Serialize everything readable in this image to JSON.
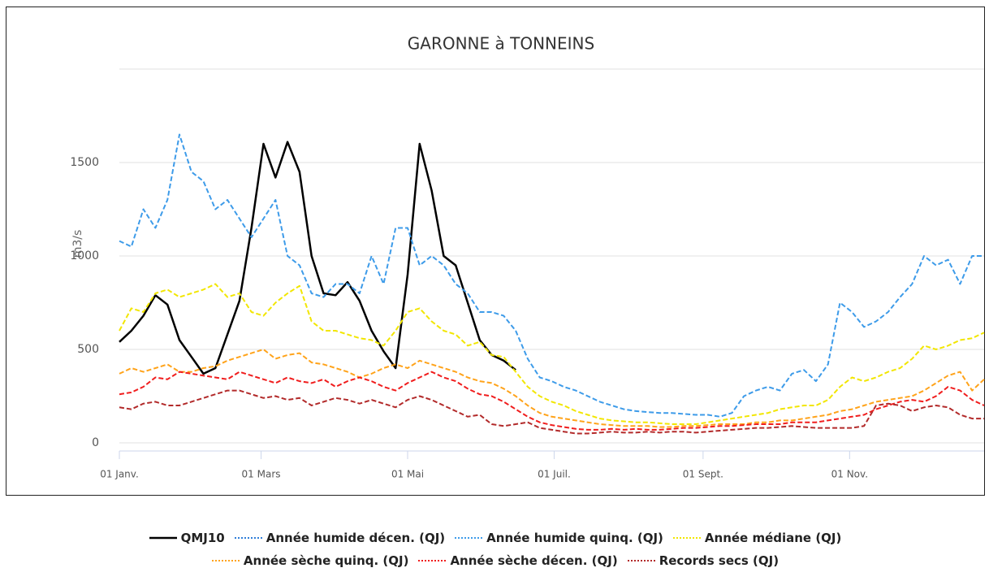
{
  "chart_data": {
    "type": "line",
    "title": "GARONNE à TONNEINS",
    "y_label": "m3/s",
    "x": [
      0,
      5,
      10,
      15,
      20,
      25,
      30,
      35,
      40,
      45,
      50,
      55,
      60,
      65,
      70,
      75,
      80,
      85,
      90,
      95,
      100,
      105,
      110,
      115,
      120,
      125,
      130,
      135,
      140,
      145,
      150,
      155,
      160,
      165,
      170,
      175,
      180,
      185,
      190,
      195,
      200,
      205,
      210,
      215,
      220,
      225,
      230,
      235,
      240,
      245,
      250,
      255,
      260,
      265,
      270,
      275,
      280,
      285,
      290,
      295,
      300,
      305,
      310,
      315,
      320,
      325,
      330,
      335,
      340,
      345,
      350,
      355,
      360
    ],
    "xlim": [
      0,
      360
    ],
    "xticks": [
      {
        "value": 0,
        "label": "01 Janv."
      },
      {
        "value": 59,
        "label": "01 Mars"
      },
      {
        "value": 120,
        "label": "01 Mai"
      },
      {
        "value": 181,
        "label": "01 Juil."
      },
      {
        "value": 243,
        "label": "01 Sept."
      },
      {
        "value": 304,
        "label": "01 Nov."
      }
    ],
    "ylim": [
      0,
      2000
    ],
    "yticks": [
      0,
      500,
      1000,
      1500
    ],
    "grid": true,
    "legend": "bottom",
    "series": [
      {
        "name": "QMJ10",
        "color": "#000000",
        "style": "solid",
        "values": [
          540,
          600,
          680,
          790,
          740,
          550,
          460,
          370,
          400,
          580,
          760,
          1150,
          1600,
          1420,
          1610,
          1450,
          1000,
          800,
          790,
          860,
          760,
          600,
          490,
          400,
          900,
          1600,
          1350,
          1000,
          950,
          750,
          550,
          470,
          440,
          390,
          null,
          null,
          null,
          null,
          null,
          null,
          null,
          null,
          null,
          null,
          null,
          null,
          null,
          null,
          null,
          null,
          null,
          null,
          null,
          null,
          null,
          null,
          null,
          null,
          null,
          null,
          null,
          null,
          null,
          null,
          null,
          null,
          null,
          null,
          null,
          null,
          null,
          null,
          null
        ]
      },
      {
        "name": "Année humide décen. (QJ)",
        "color": "#2f7ed8",
        "style": "dotted",
        "values": [
          null,
          null,
          null,
          null,
          null,
          null,
          null,
          null,
          null,
          null,
          null,
          null,
          null,
          null,
          null,
          null,
          null,
          null,
          null,
          null,
          null,
          null,
          null,
          null,
          null,
          null,
          null,
          null,
          null,
          null,
          null,
          null,
          null,
          null,
          null,
          null,
          null,
          null,
          null,
          null,
          null,
          null,
          null,
          null,
          null,
          null,
          null,
          null,
          null,
          null,
          null,
          null,
          null,
          null,
          null,
          null,
          null,
          null,
          null,
          null,
          null,
          null,
          null,
          null,
          null,
          null,
          null,
          null,
          null,
          null,
          null,
          null,
          null
        ]
      },
      {
        "name": "Année humide quinq. (QJ)",
        "color": "#3d9be9",
        "style": "dashed",
        "values": [
          1080,
          1050,
          1250,
          1150,
          1300,
          1650,
          1450,
          1400,
          1250,
          1300,
          1200,
          1100,
          1200,
          1300,
          1000,
          950,
          800,
          780,
          850,
          850,
          800,
          1000,
          850,
          1150,
          1150,
          950,
          1000,
          950,
          850,
          800,
          700,
          700,
          680,
          600,
          450,
          350,
          330,
          300,
          280,
          250,
          220,
          200,
          180,
          170,
          165,
          160,
          160,
          155,
          150,
          150,
          140,
          160,
          250,
          280,
          300,
          280,
          370,
          390,
          330,
          420,
          750,
          700,
          620,
          650,
          700,
          780,
          850,
          1000,
          950,
          980,
          850,
          1000,
          1000
        ]
      },
      {
        "name": "Année médiane (QJ)",
        "color": "#f2e600",
        "style": "dashed",
        "values": [
          600,
          720,
          700,
          800,
          820,
          780,
          800,
          820,
          850,
          780,
          800,
          700,
          680,
          750,
          800,
          840,
          650,
          600,
          600,
          580,
          560,
          550,
          520,
          600,
          700,
          720,
          650,
          600,
          580,
          520,
          540,
          470,
          460,
          380,
          300,
          250,
          220,
          200,
          170,
          150,
          130,
          120,
          115,
          110,
          110,
          105,
          100,
          100,
          100,
          110,
          120,
          130,
          140,
          150,
          160,
          180,
          190,
          200,
          200,
          230,
          300,
          350,
          330,
          350,
          380,
          400,
          450,
          520,
          500,
          520,
          550,
          560,
          590
        ]
      },
      {
        "name": "Année sèche quinq. (QJ)",
        "color": "#ffa31a",
        "style": "dashed",
        "values": [
          370,
          400,
          380,
          400,
          420,
          380,
          380,
          400,
          410,
          440,
          460,
          480,
          500,
          450,
          470,
          480,
          430,
          420,
          400,
          380,
          350,
          370,
          400,
          420,
          400,
          440,
          420,
          400,
          380,
          350,
          330,
          320,
          290,
          250,
          200,
          160,
          140,
          130,
          120,
          110,
          100,
          95,
          90,
          90,
          90,
          85,
          85,
          90,
          90,
          95,
          100,
          100,
          100,
          110,
          110,
          120,
          120,
          130,
          140,
          150,
          170,
          180,
          200,
          220,
          230,
          240,
          250,
          280,
          320,
          360,
          380,
          280,
          340
        ]
      },
      {
        "name": "Année sèche décen. (QJ)",
        "color": "#f01d1d",
        "style": "dashed",
        "values": [
          260,
          270,
          300,
          350,
          340,
          380,
          370,
          360,
          350,
          340,
          380,
          360,
          340,
          320,
          350,
          330,
          320,
          340,
          300,
          330,
          350,
          330,
          300,
          280,
          320,
          350,
          380,
          350,
          330,
          290,
          260,
          250,
          220,
          180,
          140,
          110,
          95,
          85,
          75,
          70,
          70,
          75,
          70,
          75,
          70,
          70,
          75,
          80,
          80,
          85,
          90,
          90,
          95,
          100,
          100,
          100,
          110,
          110,
          110,
          120,
          130,
          140,
          150,
          180,
          200,
          220,
          230,
          220,
          250,
          300,
          280,
          230,
          200
        ]
      },
      {
        "name": "Records secs (QJ)",
        "color": "#b22a2a",
        "style": "dashed",
        "values": [
          190,
          180,
          210,
          220,
          200,
          200,
          220,
          240,
          260,
          280,
          280,
          260,
          240,
          250,
          230,
          240,
          200,
          220,
          240,
          230,
          210,
          230,
          210,
          190,
          230,
          250,
          230,
          200,
          170,
          140,
          150,
          100,
          90,
          100,
          110,
          80,
          70,
          60,
          50,
          50,
          55,
          60,
          55,
          55,
          60,
          55,
          60,
          60,
          55,
          60,
          65,
          70,
          75,
          80,
          80,
          85,
          90,
          85,
          80,
          80,
          80,
          80,
          90,
          200,
          210,
          200,
          170,
          190,
          200,
          190,
          150,
          130,
          130
        ]
      }
    ]
  }
}
